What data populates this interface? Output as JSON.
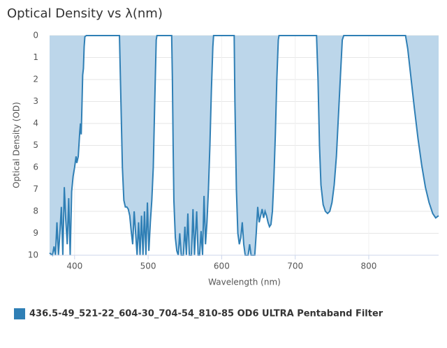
{
  "chart_data": {
    "type": "area",
    "title": "Optical Density vs λ(nm)",
    "x_label": "Wavelength (nm)",
    "y_label": "Optical Density (OD)",
    "xlim": [
      366,
      895
    ],
    "xticks": [
      400,
      500,
      600,
      700,
      800
    ],
    "ylim": [
      0,
      10
    ],
    "yticks": [
      0,
      1,
      2,
      3,
      4,
      5,
      6,
      7,
      8,
      9,
      10
    ],
    "y_inverted": true,
    "grid": true,
    "fill_color": "#bcd6ea",
    "x": [
      366,
      370,
      372,
      374,
      376,
      378,
      380,
      382,
      384,
      386,
      388,
      390,
      392,
      394,
      396,
      398,
      400,
      402,
      403,
      405,
      407,
      408,
      409,
      410,
      411,
      412,
      413,
      414,
      416,
      461,
      463,
      465,
      467,
      469,
      471,
      473,
      475,
      477,
      479,
      481,
      483,
      485,
      487,
      489,
      491,
      493,
      495,
      497,
      499,
      501,
      503,
      505,
      507,
      509,
      511,
      512,
      532,
      533,
      534,
      535,
      537,
      539,
      541,
      543,
      545,
      548,
      550,
      552,
      554,
      556,
      559,
      561,
      563,
      566,
      568,
      570,
      572,
      574,
      576,
      578,
      580,
      582,
      584,
      586,
      588,
      589,
      617,
      618,
      620,
      622,
      624,
      626,
      628,
      630,
      632,
      636,
      638,
      640,
      645,
      647,
      649,
      651,
      653,
      655,
      657,
      659,
      661,
      663,
      665,
      667,
      669,
      671,
      673,
      675,
      677,
      678,
      729,
      731,
      733,
      735,
      738,
      741,
      744,
      747,
      750,
      753,
      756,
      759,
      762,
      764,
      766,
      850,
      853,
      857,
      862,
      867,
      872,
      877,
      882,
      887,
      891,
      895
    ],
    "series": [
      {
        "name": "436.5-49_521-22_604-30_704-54_810-85 OD6 ULTRA Pentaband Filter",
        "color": "#2f7fb5",
        "values": [
          9.9,
          10,
          9.6,
          10,
          8.5,
          10,
          9,
          7.8,
          10,
          6.9,
          8.4,
          9.5,
          7.4,
          10,
          7.1,
          6.4,
          6.0,
          5.5,
          5.8,
          5.5,
          4.4,
          4.0,
          4.5,
          3.2,
          1.8,
          1.5,
          0.5,
          0.05,
          0,
          0,
          3,
          6,
          7.5,
          7.8,
          7.8,
          7.9,
          8.2,
          8.9,
          9.5,
          8.0,
          9.0,
          10,
          8.5,
          10,
          8.2,
          10,
          8.0,
          10,
          7.6,
          9.8,
          8.5,
          7.5,
          6.0,
          3,
          0.2,
          0,
          0,
          2,
          5,
          7.5,
          9.2,
          9.8,
          10,
          9.0,
          10,
          10,
          8.7,
          10,
          8.1,
          10,
          10,
          7.9,
          10,
          8.0,
          10,
          10,
          8.9,
          10,
          7.3,
          9.5,
          8.5,
          7.0,
          5.0,
          2.5,
          0.5,
          0,
          0,
          3,
          7,
          9,
          9.5,
          9.2,
          8.5,
          9.5,
          10,
          10,
          9.5,
          10,
          10,
          9,
          7.8,
          8.5,
          8.2,
          7.9,
          8.3,
          8.0,
          8.2,
          8.5,
          8.7,
          8.6,
          8.0,
          6.5,
          4.5,
          2.0,
          0.2,
          0,
          0,
          2,
          5,
          6.8,
          7.7,
          8.0,
          8.1,
          8.0,
          7.6,
          6.8,
          5.5,
          3.5,
          1.5,
          0.2,
          0,
          0,
          0.6,
          1.8,
          3.3,
          4.7,
          5.9,
          6.9,
          7.6,
          8.1,
          8.3,
          8.2
        ]
      }
    ]
  }
}
